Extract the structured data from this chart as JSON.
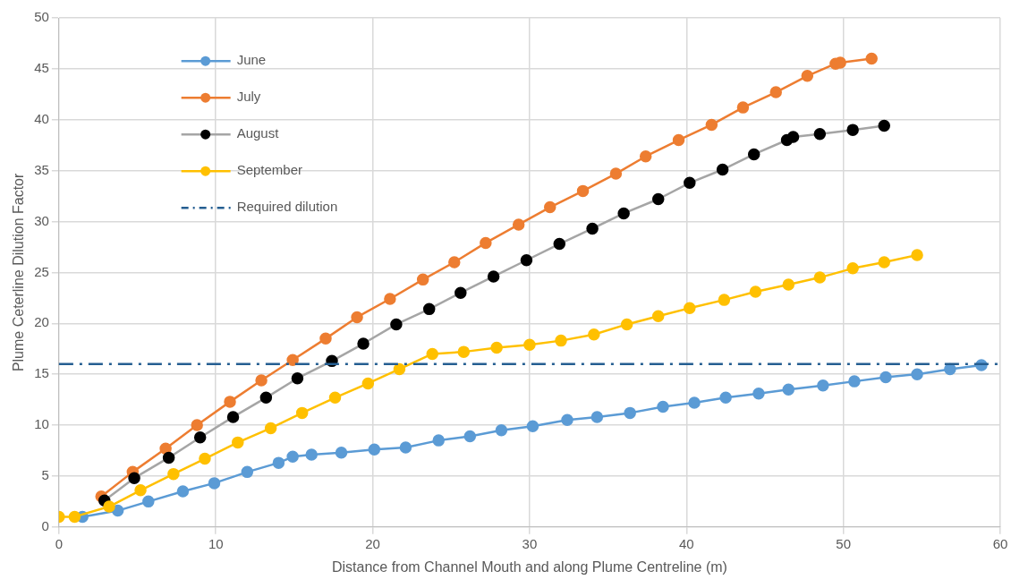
{
  "chart_data": {
    "type": "line",
    "xlabel": "Distance from Channel Mouth and along Plume Centreline (m)",
    "ylabel": "Plume Ceterline Dilution Factor",
    "xlim": [
      0,
      60
    ],
    "xticks": [
      0,
      10,
      20,
      30,
      40,
      50,
      60
    ],
    "ylim": [
      0,
      50
    ],
    "yticks": [
      0,
      5,
      10,
      15,
      20,
      25,
      30,
      35,
      40,
      45,
      50
    ],
    "grid": true,
    "legend": "top left",
    "marker": "circle",
    "line_style": "solid",
    "series": [
      {
        "name": "June",
        "color": "#5b9bd5",
        "x": [
          1.5,
          3.75,
          5.7,
          7.9,
          9.9,
          12,
          14,
          14.9,
          16.1,
          18,
          20.1,
          22.1,
          24.2,
          26.2,
          28.2,
          30.2,
          32.4,
          34.3,
          36.4,
          38.5,
          40.5,
          42.5,
          44.6,
          46.5,
          48.7,
          50.7,
          52.7,
          54.7,
          56.8,
          58.8
        ],
        "values": [
          1,
          1.6,
          2.5,
          3.5,
          4.3,
          5.4,
          6.3,
          6.9,
          7.1,
          7.3,
          7.6,
          7.8,
          8.5,
          8.9,
          9.5,
          9.9,
          10.5,
          10.8,
          11.2,
          11.8,
          12.2,
          12.7,
          13.1,
          13.5,
          13.9,
          14.3,
          14.7,
          15,
          15.5,
          15.9
        ]
      },
      {
        "name": "July",
        "color": "#ed7d31",
        "x": [
          2.7,
          4.7,
          6.8,
          8.8,
          10.9,
          12.9,
          14.9,
          17,
          19,
          21.1,
          23.2,
          25.2,
          27.2,
          29.3,
          31.3,
          33.4,
          35.5,
          37.4,
          39.5,
          41.6,
          43.6,
          45.7,
          47.7,
          49.5,
          49.8,
          51.8
        ],
        "values": [
          3,
          5.4,
          7.7,
          10,
          12.3,
          14.4,
          16.4,
          18.5,
          20.6,
          22.4,
          24.3,
          26,
          27.9,
          29.7,
          31.4,
          33,
          34.7,
          36.4,
          38,
          39.5,
          41.2,
          42.7,
          44.3,
          45.5,
          45.6,
          46
        ]
      },
      {
        "name": "August",
        "color": "#a5a5a5",
        "colors": [
          "#000000",
          "#000000",
          "#000000",
          "#000000",
          "#000000",
          "#000000",
          "#000000",
          "#000000",
          "#000000",
          "#000000",
          "#000000",
          "#000000",
          "#000000",
          "#000000",
          "#000000",
          "#000000",
          "#000000",
          "#000000",
          "#000000",
          "#000000",
          "#000000",
          "#000000",
          "#000000",
          "#000000",
          "#000000",
          "#000000"
        ],
        "x": [
          2.9,
          4.8,
          7,
          9,
          11.1,
          13.2,
          15.2,
          17.4,
          19.4,
          21.5,
          23.6,
          25.6,
          27.7,
          29.8,
          31.9,
          34,
          36,
          38.2,
          40.2,
          42.3,
          44.3,
          46.4,
          46.8,
          48.5,
          50.6,
          52.6
        ],
        "values": [
          2.6,
          4.8,
          6.8,
          8.8,
          10.8,
          12.7,
          14.6,
          16.3,
          18,
          19.9,
          21.4,
          23,
          24.6,
          26.2,
          27.8,
          29.3,
          30.8,
          32.2,
          33.8,
          35.1,
          36.6,
          38,
          38.3,
          38.6,
          39,
          39.4
        ]
      },
      {
        "name": "September",
        "color": "#ffc000",
        "x": [
          0,
          1,
          3.2,
          5.2,
          7.3,
          9.3,
          11.4,
          13.5,
          15.5,
          17.6,
          19.7,
          21.7,
          23.8,
          25.8,
          27.9,
          30,
          32,
          34.1,
          36.2,
          38.2,
          40.2,
          42.4,
          44.4,
          46.5,
          48.5,
          50.6,
          52.6,
          54.7
        ],
        "values": [
          1,
          1,
          2,
          3.6,
          5.2,
          6.7,
          8.3,
          9.7,
          11.2,
          12.7,
          14.1,
          15.5,
          17,
          17.2,
          17.6,
          17.9,
          18.3,
          18.9,
          19.9,
          20.7,
          21.5,
          22.3,
          23.1,
          23.8,
          24.5,
          25.4,
          26,
          26.7
        ]
      }
    ],
    "ref_lines": [
      {
        "axis": "y",
        "value": 16,
        "label": "Required dilution",
        "color": "#255e91",
        "line_style": "dashed"
      }
    ]
  }
}
